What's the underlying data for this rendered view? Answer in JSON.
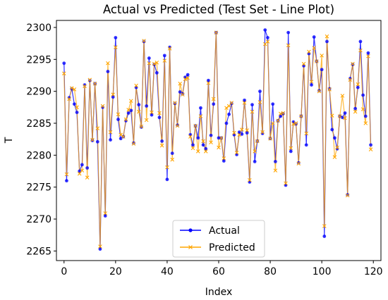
{
  "chart_data": {
    "type": "line",
    "title": "Actual vs Predicted (Test Set - Line Plot)",
    "xlabel": "Index",
    "ylabel": "T",
    "xlim": [
      -2.95,
      122.95
    ],
    "ylim": [
      2263.5,
      2301.1
    ],
    "xticks": [
      0,
      20,
      40,
      60,
      80,
      100,
      120
    ],
    "yticks": [
      2265,
      2270,
      2275,
      2280,
      2285,
      2290,
      2295,
      2300
    ],
    "legend_position": "bottom-center",
    "grid": false,
    "series": [
      {
        "name": "Actual",
        "color": "#0000ff",
        "marker": "circle",
        "values": [
          2294.4,
          2276.0,
          2289.0,
          2290.4,
          2288.0,
          2286.7,
          2277.5,
          2278.5,
          2291.0,
          2278.0,
          2291.7,
          2282.3,
          2291.2,
          2282.1,
          2265.3,
          2287.5,
          2270.5,
          2293.1,
          2282.4,
          2289.1,
          2298.4,
          2285.6,
          2282.6,
          2282.9,
          2285.4,
          2286.6,
          2287.0,
          2281.9,
          2290.6,
          2287.9,
          2284.4,
          2297.8,
          2287.7,
          2295.2,
          2286.3,
          2294.2,
          2292.9,
          2285.9,
          2282.2,
          2295.6,
          2276.2,
          2296.9,
          2280.3,
          2288.1,
          2284.7,
          2289.9,
          2289.6,
          2292.2,
          2292.6,
          2283.2,
          2281.6,
          2284.6,
          2282.7,
          2287.4,
          2281.6,
          2281.0,
          2291.7,
          2283.1,
          2288.0,
          2299.2,
          2282.7,
          2282.7,
          2279.1,
          2285.0,
          2286.4,
          2288.1,
          2283.2,
          2280.1,
          2283.6,
          2283.3,
          2288.6,
          2283.5,
          2275.8,
          2287.9,
          2279.0,
          2282.2,
          2290.0,
          2283.4,
          2299.6,
          2298.4,
          2282.6,
          2288.0,
          2279.0,
          2285.4,
          2286.1,
          2286.5,
          2275.3,
          2299.2,
          2280.6,
          2285.2,
          2284.9,
          2278.8,
          2286.1,
          2294.0,
          2281.6,
          2295.9,
          2291.0,
          2298.5,
          2294.7,
          2290.1,
          2293.4,
          2267.3,
          2297.8,
          2290.4,
          2284.0,
          2282.7,
          2281.0,
          2286.1,
          2285.9,
          2286.6,
          2273.8,
          2292.0,
          2294.2,
          2287.3,
          2290.6,
          2297.8,
          2289.4,
          2286.1,
          2296.0,
          2281.6
        ]
      },
      {
        "name": "Predicted",
        "color": "#ffa500",
        "marker": "x",
        "values": [
          2292.8,
          2277.0,
          2288.8,
          2290.5,
          2290.3,
          2287.5,
          2277.1,
          2277.6,
          2290.8,
          2276.5,
          2291.8,
          2282.4,
          2291.2,
          2284.2,
          2265.7,
          2287.7,
          2270.9,
          2294.4,
          2283.6,
          2289.5,
          2296.9,
          2286.4,
          2283.2,
          2282.9,
          2285.6,
          2287.1,
          2288.5,
          2281.8,
          2290.9,
          2286.8,
          2284.5,
          2297.9,
          2285.5,
          2294.4,
          2286.7,
          2294.3,
          2294.5,
          2286.6,
          2281.5,
          2294.8,
          2278.1,
          2296.7,
          2279.3,
          2288.2,
          2284.6,
          2291.2,
          2289.5,
          2291.9,
          2292.1,
          2282.9,
          2281.1,
          2284.6,
          2280.6,
          2286.1,
          2282.2,
          2280.6,
          2291.3,
          2282.0,
          2288.8,
          2299.2,
          2281.2,
          2282.7,
          2279.5,
          2287.4,
          2287.7,
          2288.2,
          2283.5,
          2280.4,
          2283.2,
          2284.0,
          2288.2,
          2283.9,
          2276.1,
          2286.8,
          2280.6,
          2282.2,
          2288.3,
          2283.6,
          2297.4,
          2297.8,
          2282.6,
          2285.0,
          2277.6,
          2285.4,
          2286.5,
          2286.6,
          2275.6,
          2297.2,
          2281.1,
          2284.9,
          2285.0,
          2278.7,
          2286.1,
          2294.3,
          2283.4,
          2296.2,
          2291.5,
          2296.8,
          2294.7,
          2290.0,
          2295.6,
          2268.9,
          2298.6,
          2290.3,
          2286.2,
          2279.7,
          2281.2,
          2286.1,
          2289.3,
          2285.8,
          2273.7,
          2291.8,
          2294.3,
          2286.8,
          2291.1,
          2296.4,
          2287.2,
          2285.0,
          2295.5,
          2280.9
        ]
      }
    ]
  }
}
